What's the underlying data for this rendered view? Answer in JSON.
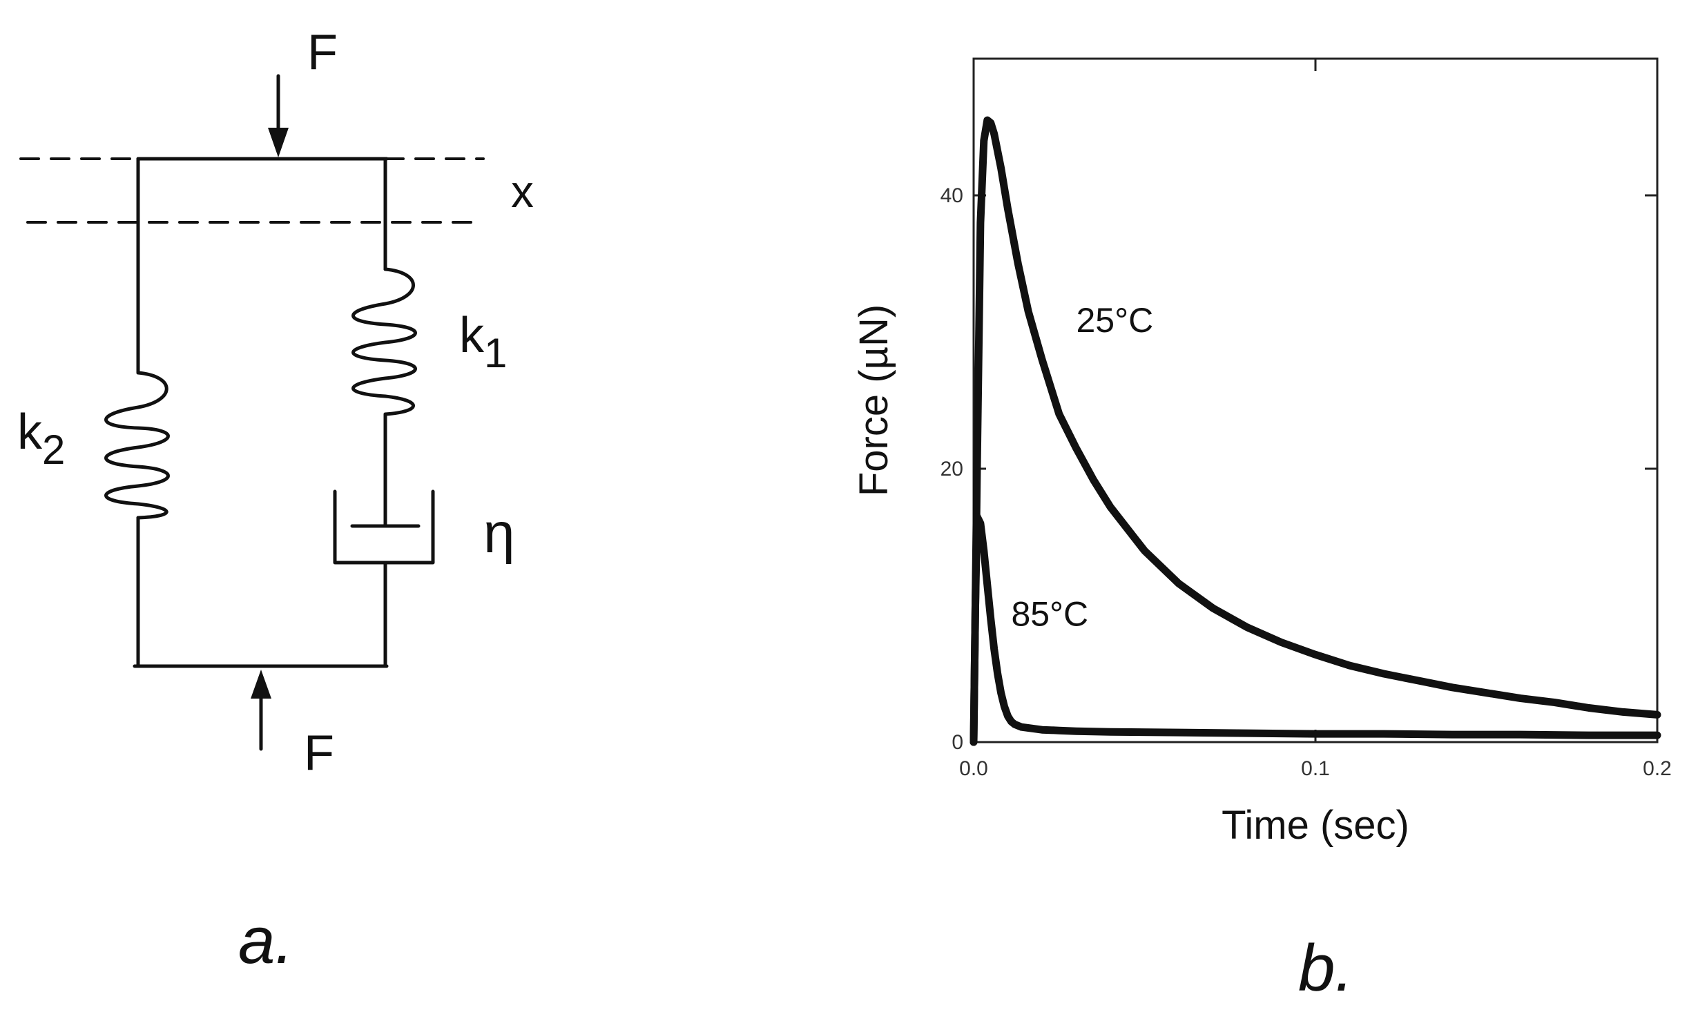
{
  "diagram": {
    "force_top": "F",
    "force_bottom": "F",
    "displacement": "x",
    "spring_right_k": "k",
    "spring_right_sub": "1",
    "spring_left_k": "k",
    "spring_left_sub": "2",
    "dashpot": "η",
    "panel_label": "a."
  },
  "chart_data": {
    "type": "line",
    "xlabel": "Time (sec)",
    "ylabel": "Force (µN)",
    "xlim": [
      0,
      0.2
    ],
    "ylim": [
      0,
      50
    ],
    "x_ticks": [
      "0.0",
      "0.1",
      "0.2"
    ],
    "y_ticks": [
      "0",
      "20",
      "40"
    ],
    "grid": false,
    "panel_label": "b.",
    "series": [
      {
        "name": "25°C",
        "color": "#111111",
        "x": [
          0,
          0.001,
          0.002,
          0.003,
          0.004,
          0.005,
          0.006,
          0.008,
          0.01,
          0.013,
          0.016,
          0.02,
          0.025,
          0.03,
          0.035,
          0.04,
          0.05,
          0.06,
          0.07,
          0.08,
          0.09,
          0.1,
          0.11,
          0.12,
          0.13,
          0.14,
          0.15,
          0.16,
          0.17,
          0.18,
          0.19,
          0.2
        ],
        "y": [
          0,
          20,
          38,
          44,
          45.5,
          45.3,
          44.5,
          42,
          39,
          35,
          31.5,
          28,
          24,
          21.5,
          19.2,
          17.2,
          14,
          11.6,
          9.8,
          8.4,
          7.3,
          6.4,
          5.6,
          5,
          4.5,
          4,
          3.6,
          3.2,
          2.9,
          2.5,
          2.2,
          2
        ]
      },
      {
        "name": "85°C",
        "color": "#111111",
        "x": [
          0,
          0.0005,
          0.001,
          0.002,
          0.003,
          0.004,
          0.005,
          0.006,
          0.007,
          0.008,
          0.009,
          0.01,
          0.011,
          0.012,
          0.014,
          0.017,
          0.02,
          0.025,
          0.03,
          0.04,
          0.06,
          0.08,
          0.1,
          0.12,
          0.14,
          0.16,
          0.18,
          0.2
        ],
        "y": [
          0,
          10,
          16.5,
          16,
          14,
          11.5,
          9,
          6.8,
          5,
          3.6,
          2.6,
          1.9,
          1.5,
          1.3,
          1.1,
          1.0,
          0.9,
          0.85,
          0.8,
          0.75,
          0.7,
          0.65,
          0.6,
          0.6,
          0.55,
          0.55,
          0.5,
          0.5
        ]
      }
    ],
    "annotations": [
      {
        "text": "25°C",
        "x": 0.03,
        "y": 30
      },
      {
        "text": "85°C",
        "x": 0.011,
        "y": 8.5
      }
    ]
  }
}
